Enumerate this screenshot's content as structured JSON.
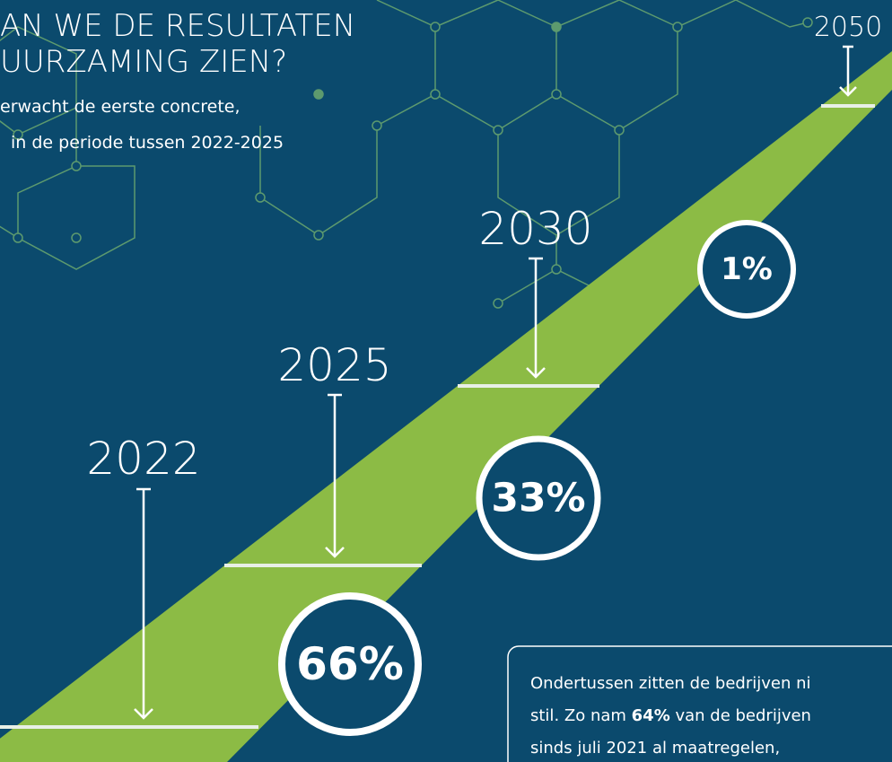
{
  "header": {
    "title_lines": [
      "AN WE DE RESULTATEN",
      "UURZAMING ZIEN?"
    ],
    "subtitle_lines": [
      "erwacht de eerste concrete,",
      "in de periode tussen 2022-2025"
    ]
  },
  "milestones": [
    {
      "year": "2022",
      "percent": "66%"
    },
    {
      "year": "2025",
      "percent": "33%"
    },
    {
      "year": "2030",
      "percent": "1%"
    },
    {
      "year": "2050"
    }
  ],
  "callout": {
    "line1": "Ondertussen zitten de bedrijven ni",
    "line2_a": "stil. Zo nam ",
    "line2_bold": "64%",
    "line2_b": " van de bedrijven",
    "line3": "sinds juli 2021 al maatregelen,"
  }
}
